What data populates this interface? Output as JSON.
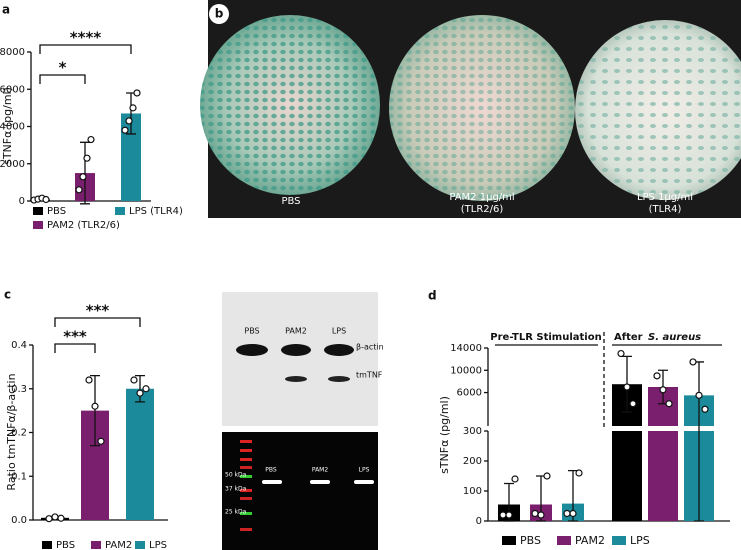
{
  "chart_data": [
    {
      "type": "bar",
      "panel": "a",
      "ylabel": "sTNFα (pg/ml)",
      "categories": [
        "PBS",
        "PAM2 (TLR2/6)",
        "LPS (TLR4)"
      ],
      "values": [
        80,
        1500,
        4700
      ],
      "errors": [
        60,
        1650,
        1100
      ],
      "points": [
        [
          50,
          100,
          150,
          80
        ],
        [
          600,
          1300,
          2300,
          3300
        ],
        [
          3800,
          4300,
          5000,
          5800
        ]
      ],
      "colors": [
        "#000000",
        "#7a1f6e",
        "#1b8b9b"
      ],
      "ylim": [
        0,
        8000
      ],
      "yticks": [
        0,
        2000,
        4000,
        6000,
        8000
      ],
      "annotations": [
        "*",
        "****"
      ]
    },
    {
      "type": "bar",
      "panel": "c",
      "ylabel": "Ratio tmTNFα/β-actin",
      "categories": [
        "PBS",
        "PAM2",
        "LPS"
      ],
      "values": [
        0.005,
        0.25,
        0.3
      ],
      "errors": [
        0.003,
        0.08,
        0.03
      ],
      "points": [
        [
          0.003,
          0.007,
          0.004
        ],
        [
          0.32,
          0.26,
          0.18
        ],
        [
          0.32,
          0.29,
          0.3
        ]
      ],
      "colors": [
        "#000000",
        "#7a1f6e",
        "#1b8b9b"
      ],
      "ylim": [
        0,
        0.4
      ],
      "yticks": [
        {
          "value": 0,
          "label": "0.0"
        },
        0.1,
        0.2,
        0.3,
        0.4
      ],
      "annotations": [
        "***",
        "***"
      ]
    },
    {
      "type": "broken-bar",
      "panel": "d",
      "ylabel": "sTNFα (pg/ml)",
      "pre_label": "Pre-TLR Stimulation",
      "post_label": "After",
      "post_label_species": "S. aureus",
      "series": [
        {
          "name": "PBS",
          "color": "#000000",
          "values": [
            55,
            7500
          ],
          "errors": [
            70,
            5000
          ],
          "points": [
            [
              20,
              20,
              140
            ],
            [
              13000,
              7000,
              4000
            ]
          ]
        },
        {
          "name": "PAM2",
          "color": "#7a1f6e",
          "values": [
            55,
            7000
          ],
          "errors": [
            95,
            3000
          ],
          "points": [
            [
              25,
              20,
              150
            ],
            [
              9000,
              6500,
              4000
            ]
          ]
        },
        {
          "name": "LPS",
          "color": "#1b8b9b",
          "values": [
            58,
            5500
          ],
          "errors": [
            110,
            6000
          ],
          "points": [
            [
              25,
              25,
              160
            ],
            [
              11500,
              5500,
              3000
            ]
          ]
        }
      ],
      "ylim": [
        0,
        300
      ],
      "yticks": [
        0,
        100,
        200,
        300
      ],
      "y2lim": [
        0,
        14000
      ],
      "y2ticks": [
        6000,
        10000,
        14000
      ]
    }
  ],
  "micrographs": {
    "panel": "b",
    "captions": [
      [
        "PBS"
      ],
      [
        "PAM2 1μg/ml",
        "(TLR2/6)"
      ],
      [
        "LPS 1μg/ml",
        "(TLR4)"
      ]
    ]
  },
  "blot": {
    "lanes": [
      "PBS",
      "PAM2",
      "LPS"
    ],
    "bands": [
      "β-actin",
      "tmTNF"
    ],
    "ladder": [
      "50 kDa",
      "37 kDa",
      "25 kDa"
    ]
  }
}
